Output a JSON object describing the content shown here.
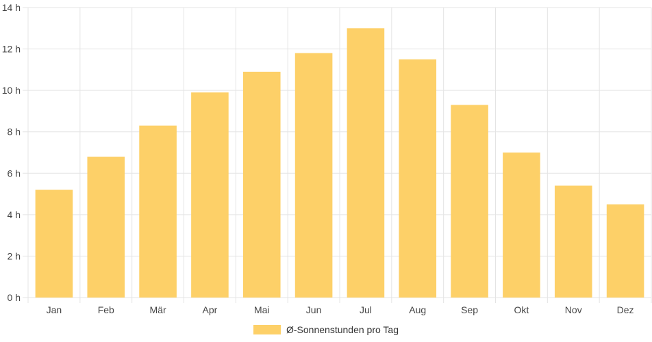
{
  "chart_data": {
    "type": "bar",
    "categories": [
      "Jan",
      "Feb",
      "Mär",
      "Apr",
      "Mai",
      "Jun",
      "Jul",
      "Aug",
      "Sep",
      "Okt",
      "Nov",
      "Dez"
    ],
    "series": [
      {
        "name": "Ø-Sonnenstunden pro Tag",
        "values": [
          5.2,
          6.8,
          8.3,
          9.9,
          10.9,
          11.8,
          13.0,
          11.5,
          9.3,
          7.0,
          5.4,
          4.5
        ],
        "color": "#fdd068"
      }
    ],
    "y_ticks": [
      "0 h",
      "2 h",
      "4 h",
      "6 h",
      "8 h",
      "10 h",
      "12 h",
      "14 h"
    ],
    "ylim": [
      0,
      14
    ],
    "grid": true,
    "legend_position": "bottom"
  }
}
